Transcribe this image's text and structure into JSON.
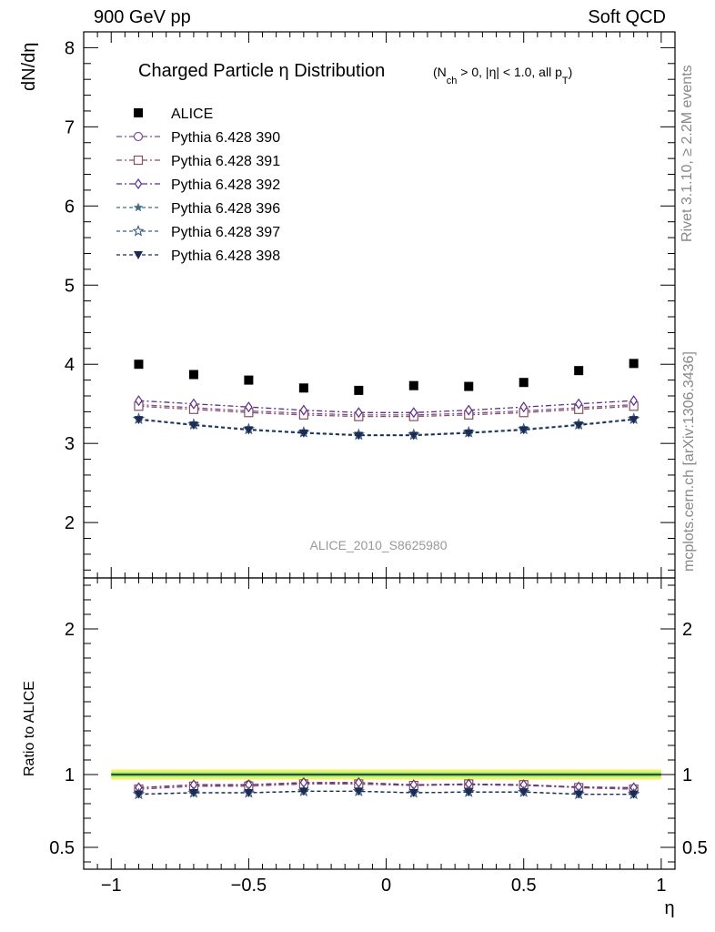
{
  "header": {
    "left_label": "900 GeV pp",
    "right_label": "Soft QCD"
  },
  "side_labels": {
    "rivet": "Rivet 3.1.10, ≥ 2.2M events",
    "source": "mcplots.cern.ch [arXiv:1306.3436]"
  },
  "chart_data": {
    "type": "scatter",
    "title": "Charged Particle η Distribution",
    "subtitle_parts": [
      "(N",
      "ch",
      " > 0, |η| < 1.0, all p",
      "T",
      ")"
    ],
    "watermark": "ALICE_2010_S8625980",
    "xlabel": "η",
    "ylabel_main": "dN/dη",
    "ylabel_ratio": "Ratio to ALICE",
    "xlim": [
      -1.1,
      1.05
    ],
    "ylim_main": [
      1.3,
      8.2
    ],
    "ylim_ratio": [
      0.35,
      2.35
    ],
    "x_ticks": [
      -1,
      -0.5,
      0,
      0.5,
      1
    ],
    "x_tick_labels": [
      "−1",
      "−0.5",
      "0",
      "0.5",
      "1"
    ],
    "y_ticks_main": [
      2,
      3,
      4,
      5,
      6,
      7,
      8
    ],
    "y_ticks_ratio": [
      0.5,
      1,
      2
    ],
    "y_tick_labels_ratio": [
      "0.5",
      "1",
      "2"
    ],
    "x": [
      -0.9,
      -0.7,
      -0.5,
      -0.3,
      -0.1,
      0.1,
      0.3,
      0.5,
      0.7,
      0.9
    ],
    "legend_position": "top-left",
    "data": {
      "name": "ALICE",
      "color": "#000000",
      "marker": "square",
      "values": [
        4.0,
        3.87,
        3.8,
        3.7,
        3.67,
        3.73,
        3.72,
        3.77,
        3.92,
        4.01
      ]
    },
    "series": [
      {
        "name": "Pythia 6.428 390",
        "color": "#7b4f8c",
        "marker": "circle",
        "dash": "6,3,2,3",
        "values": [
          3.49,
          3.45,
          3.41,
          3.38,
          3.36,
          3.36,
          3.38,
          3.41,
          3.45,
          3.49
        ]
      },
      {
        "name": "Pythia 6.428 391",
        "color": "#8a4f62",
        "marker": "square-open",
        "dash": "6,3,2,3",
        "values": [
          3.47,
          3.43,
          3.39,
          3.36,
          3.34,
          3.34,
          3.36,
          3.39,
          3.43,
          3.47
        ]
      },
      {
        "name": "Pythia 6.428 392",
        "color": "#5a2e8c",
        "marker": "diamond",
        "dash": "6,3,2,3",
        "values": [
          3.54,
          3.5,
          3.46,
          3.42,
          3.39,
          3.39,
          3.42,
          3.46,
          3.5,
          3.54
        ]
      },
      {
        "name": "Pythia 6.428 396",
        "color": "#3f6e86",
        "marker": "star",
        "dash": "4,3",
        "values": [
          3.3,
          3.23,
          3.17,
          3.13,
          3.1,
          3.1,
          3.13,
          3.17,
          3.23,
          3.3
        ]
      },
      {
        "name": "Pythia 6.428 397",
        "color": "#3b5f80",
        "marker": "star-open",
        "dash": "4,3",
        "values": [
          3.31,
          3.24,
          3.18,
          3.14,
          3.11,
          3.11,
          3.14,
          3.18,
          3.24,
          3.31
        ]
      },
      {
        "name": "Pythia 6.428 398",
        "color": "#1c2a55",
        "marker": "triangle-down",
        "dash": "4,3",
        "values": [
          3.3,
          3.23,
          3.17,
          3.13,
          3.1,
          3.1,
          3.13,
          3.17,
          3.23,
          3.3
        ]
      }
    ],
    "ratio": {
      "reference": "ALICE",
      "band_colors": [
        "#f2f26a",
        "#7be07b"
      ],
      "series_values": [
        [
          0.9,
          0.92,
          0.93,
          0.94,
          0.935,
          0.925,
          0.93,
          0.925,
          0.91,
          0.9
        ],
        [
          0.9,
          0.92,
          0.92,
          0.935,
          0.935,
          0.925,
          0.935,
          0.93,
          0.91,
          0.9
        ],
        [
          0.91,
          0.93,
          0.93,
          0.945,
          0.945,
          0.93,
          0.935,
          0.93,
          0.915,
          0.91
        ],
        [
          0.865,
          0.875,
          0.875,
          0.885,
          0.885,
          0.875,
          0.88,
          0.88,
          0.865,
          0.865
        ],
        [
          0.865,
          0.875,
          0.875,
          0.885,
          0.885,
          0.875,
          0.88,
          0.88,
          0.865,
          0.865
        ],
        [
          0.865,
          0.875,
          0.875,
          0.885,
          0.885,
          0.875,
          0.88,
          0.88,
          0.865,
          0.865
        ]
      ]
    }
  }
}
